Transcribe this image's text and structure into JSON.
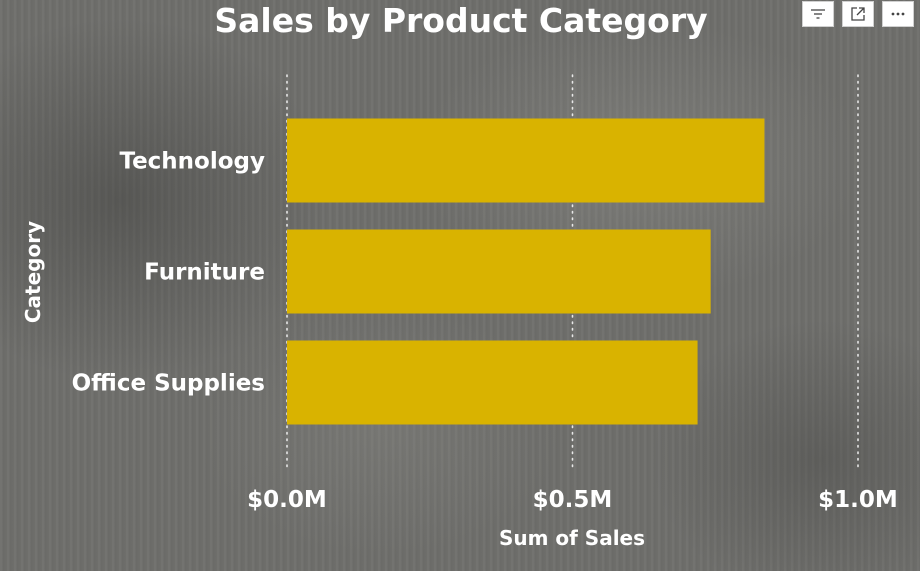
{
  "chart_data": {
    "type": "bar",
    "orientation": "horizontal",
    "title": "Sales by Product Category",
    "xlabel": "Sum of Sales",
    "ylabel": "Category",
    "categories": [
      "Technology",
      "Furniture",
      "Office Supplies"
    ],
    "values": [
      836154,
      741999,
      719047
    ],
    "xlim": [
      0,
      1000000
    ],
    "xticks": [
      0,
      500000,
      1000000
    ],
    "xtick_labels": [
      "$0.0M",
      "$0.5M",
      "$1.0M"
    ],
    "grid": "vertical dotted",
    "legend": "none",
    "bar_color": "#d9b300"
  },
  "toolbar": {
    "items": [
      {
        "name": "filter-icon"
      },
      {
        "name": "focus-mode-icon"
      },
      {
        "name": "more-options-icon"
      }
    ]
  }
}
